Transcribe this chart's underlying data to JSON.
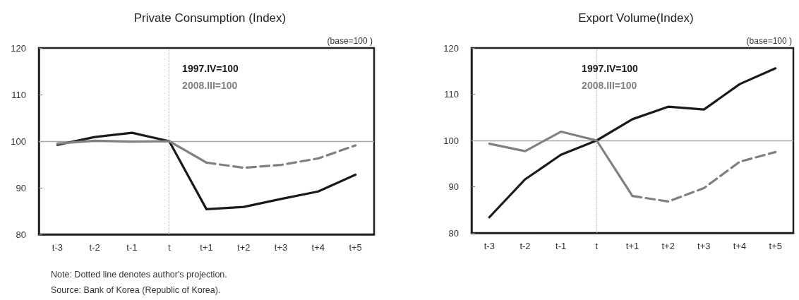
{
  "chart_data": [
    {
      "type": "line",
      "title": "Private Consumption (Index)",
      "categories": [
        "t-3",
        "t-2",
        "t-1",
        "t",
        "t+1",
        "t+2",
        "t+3",
        "t+4",
        "t+5"
      ],
      "series": [
        {
          "name": "1997.IV=100",
          "color": "#1a1a1a",
          "values": [
            99.2,
            100.9,
            101.8,
            100,
            85.4,
            85.9,
            87.6,
            89.2,
            92.8
          ]
        },
        {
          "name": "2008.III=100",
          "color": "#808080",
          "values": [
            99.5,
            100.1,
            99.9,
            100,
            95.4,
            null,
            null,
            null,
            null
          ]
        },
        {
          "color": "#808080",
          "line_style": "dashed",
          "values": [
            null,
            null,
            null,
            null,
            95.4,
            94.3,
            94.9,
            96.3,
            99.1
          ]
        }
      ],
      "ylim": [
        80,
        120
      ],
      "yticks": [
        80,
        90,
        100,
        110,
        120
      ],
      "grid": false,
      "legend": "top",
      "marker": "none",
      "ref_lines": [
        {
          "axis": "y",
          "value": 100,
          "color": "#a6a6a6",
          "line_style": "solid"
        },
        {
          "axis": "x",
          "value": "t",
          "color": "#b0b0b0",
          "line_style": "dotted"
        }
      ],
      "annotations": [
        "(base=100 )",
        "Note: Dotted line denotes author's projection.",
        "Source: Bank of Korea (Republic of Korea)."
      ]
    },
    {
      "type": "line",
      "title": "Export Volume(Index)",
      "categories": [
        "t-3",
        "t-2",
        "t-1",
        "t",
        "t+1",
        "t+2",
        "t+3",
        "t+4",
        "t+5"
      ],
      "series": [
        {
          "name": "1997.IV=100",
          "color": "#1a1a1a",
          "values": [
            83.4,
            91.6,
            96.9,
            100,
            104.6,
            107.3,
            106.7,
            112.2,
            115.6
          ]
        },
        {
          "name": "2008.III=100",
          "color": "#808080",
          "values": [
            99.3,
            97.7,
            101.9,
            100,
            88.0,
            null,
            null,
            null,
            null
          ]
        },
        {
          "color": "#808080",
          "line_style": "dashed",
          "values": [
            null,
            null,
            null,
            null,
            88.0,
            86.8,
            89.7,
            95.4,
            97.5
          ]
        }
      ],
      "ylim": [
        80,
        120
      ],
      "yticks": [
        80,
        90,
        100,
        110,
        120
      ],
      "grid": false,
      "legend": "top",
      "marker": "none",
      "ref_lines": [
        {
          "axis": "y",
          "value": 100,
          "color": "#a6a6a6",
          "line_style": "solid"
        },
        {
          "axis": "x",
          "value": "t",
          "color": "#b0b0b0",
          "line_style": "dotted"
        }
      ],
      "annotations": [
        "(base=100 )"
      ]
    }
  ]
}
